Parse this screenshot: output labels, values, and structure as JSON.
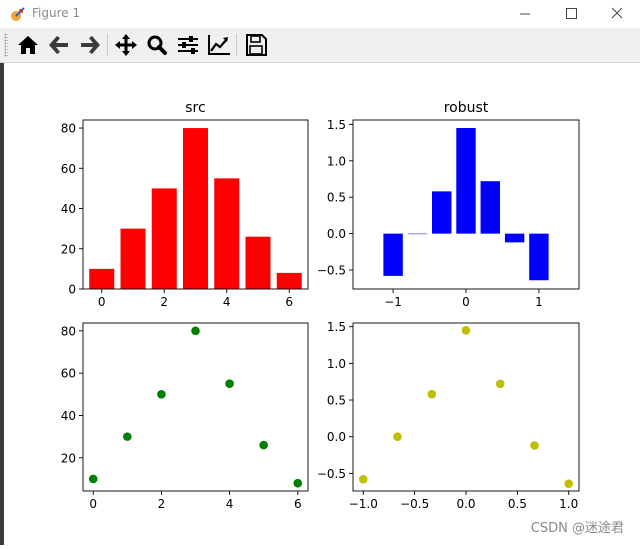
{
  "window": {
    "title": "Figure 1",
    "minimize_label": "minimize",
    "maximize_label": "maximize",
    "close_label": "close"
  },
  "toolbar": {
    "buttons": [
      {
        "name": "home",
        "icon": "home-icon"
      },
      {
        "name": "back",
        "icon": "arrow-left-icon"
      },
      {
        "name": "forward",
        "icon": "arrow-right-icon"
      },
      {
        "name": "pan",
        "icon": "move-icon"
      },
      {
        "name": "zoom",
        "icon": "magnifier-icon"
      },
      {
        "name": "configure-subplots",
        "icon": "sliders-icon"
      },
      {
        "name": "edit-axis",
        "icon": "line-chart-icon"
      },
      {
        "name": "save",
        "icon": "floppy-icon"
      }
    ]
  },
  "watermark": "CSDN @迷途君",
  "chart_data": [
    {
      "type": "bar",
      "title": "src",
      "x": [
        0,
        1,
        2,
        3,
        4,
        5,
        6
      ],
      "values": [
        10,
        30,
        50,
        80,
        55,
        26,
        8
      ],
      "color": "#ff0000",
      "xlim": [
        -0.6,
        6.6
      ],
      "ylim": [
        0,
        84
      ],
      "xticks": [
        0,
        2,
        4,
        6
      ],
      "yticks": [
        0,
        20,
        40,
        60,
        80
      ]
    },
    {
      "type": "bar",
      "title": "robust",
      "x": [
        -1.0,
        -0.667,
        -0.333,
        0.0,
        0.333,
        0.667,
        1.0
      ],
      "values": [
        -0.58,
        0.0,
        0.58,
        1.45,
        0.72,
        -0.12,
        -0.64
      ],
      "color": "#0000ff",
      "xlim": [
        -1.55,
        1.55
      ],
      "ylim": [
        -0.76,
        1.56
      ],
      "xticks": [
        -1,
        0,
        1
      ],
      "yticks": [
        -0.5,
        0.0,
        0.5,
        1.0,
        1.5
      ],
      "ytick_labels": [
        "−0.5",
        "0.0",
        "0.5",
        "1.0",
        "1.5"
      ],
      "xtick_labels": [
        "−1",
        "0",
        "1"
      ]
    },
    {
      "type": "scatter",
      "title": "",
      "x": [
        0,
        1,
        2,
        3,
        4,
        5,
        6
      ],
      "y": [
        10,
        30,
        50,
        80,
        55,
        26,
        8
      ],
      "color": "#008000",
      "xlim": [
        -0.3,
        6.3
      ],
      "ylim": [
        4.3,
        83.7
      ],
      "xticks": [
        0,
        2,
        4,
        6
      ],
      "yticks": [
        20,
        40,
        60,
        80
      ]
    },
    {
      "type": "scatter",
      "title": "",
      "x": [
        -1.0,
        -0.667,
        -0.333,
        0.0,
        0.333,
        0.667,
        1.0
      ],
      "y": [
        -0.58,
        0.0,
        0.58,
        1.45,
        0.72,
        -0.12,
        -0.64
      ],
      "color": "#bfbf00",
      "xlim": [
        -1.1,
        1.1
      ],
      "ylim": [
        -0.74,
        1.55
      ],
      "xticks": [
        -1.0,
        -0.5,
        0.0,
        0.5,
        1.0
      ],
      "xtick_labels": [
        "−1.0",
        "−0.5",
        "0.0",
        "0.5",
        "1.0"
      ],
      "yticks": [
        -0.5,
        0.0,
        0.5,
        1.0,
        1.5
      ],
      "ytick_labels": [
        "−0.5",
        "0.0",
        "0.5",
        "1.0",
        "1.5"
      ]
    }
  ]
}
